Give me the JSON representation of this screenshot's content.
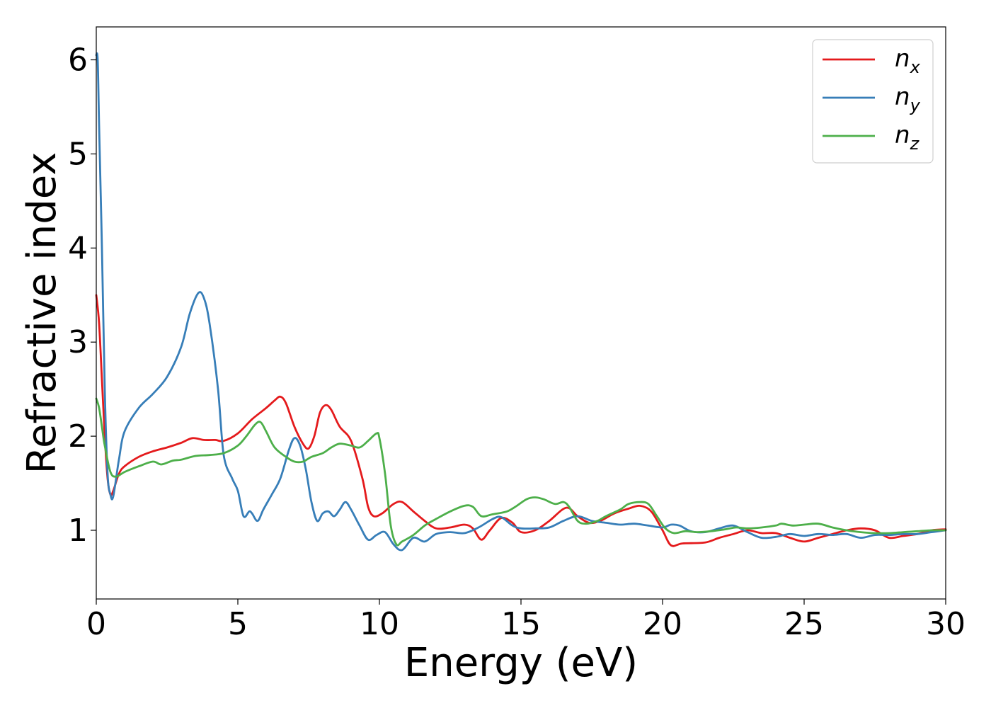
{
  "chart_data": {
    "type": "line",
    "xlabel": "Energy (eV)",
    "ylabel": "Refractive index",
    "xlim": [
      0,
      30
    ],
    "ylim": [
      0.27,
      6.35
    ],
    "x_ticks": [
      0,
      5,
      10,
      15,
      20,
      25,
      30
    ],
    "y_ticks": [
      1,
      2,
      3,
      4,
      5,
      6
    ],
    "grid": false,
    "legend_position": "top-right",
    "series": [
      {
        "name": "n_x",
        "label_base": "n",
        "label_sub": "x",
        "color": "#e41a1c",
        "points": [
          [
            0,
            3.5
          ],
          [
            0.1,
            3.2
          ],
          [
            0.2,
            2.6
          ],
          [
            0.3,
            2.0
          ],
          [
            0.4,
            1.55
          ],
          [
            0.5,
            1.38
          ],
          [
            0.6,
            1.42
          ],
          [
            0.8,
            1.6
          ],
          [
            1.0,
            1.68
          ],
          [
            1.5,
            1.78
          ],
          [
            2.0,
            1.84
          ],
          [
            2.5,
            1.88
          ],
          [
            3.0,
            1.93
          ],
          [
            3.4,
            1.98
          ],
          [
            3.8,
            1.96
          ],
          [
            4.2,
            1.96
          ],
          [
            4.5,
            1.95
          ],
          [
            5.0,
            2.03
          ],
          [
            5.5,
            2.18
          ],
          [
            6.0,
            2.3
          ],
          [
            6.3,
            2.38
          ],
          [
            6.5,
            2.42
          ],
          [
            6.7,
            2.35
          ],
          [
            7.0,
            2.1
          ],
          [
            7.3,
            1.92
          ],
          [
            7.5,
            1.87
          ],
          [
            7.7,
            2.0
          ],
          [
            7.9,
            2.25
          ],
          [
            8.1,
            2.33
          ],
          [
            8.3,
            2.28
          ],
          [
            8.6,
            2.1
          ],
          [
            9.0,
            1.95
          ],
          [
            9.4,
            1.55
          ],
          [
            9.6,
            1.25
          ],
          [
            9.8,
            1.15
          ],
          [
            10.1,
            1.18
          ],
          [
            10.5,
            1.28
          ],
          [
            10.8,
            1.3
          ],
          [
            11.2,
            1.2
          ],
          [
            11.6,
            1.1
          ],
          [
            12.0,
            1.02
          ],
          [
            12.5,
            1.03
          ],
          [
            13.0,
            1.06
          ],
          [
            13.3,
            1.02
          ],
          [
            13.6,
            0.9
          ],
          [
            13.9,
            1.0
          ],
          [
            14.3,
            1.13
          ],
          [
            14.7,
            1.08
          ],
          [
            15.0,
            0.98
          ],
          [
            15.5,
            1.0
          ],
          [
            16.0,
            1.1
          ],
          [
            16.6,
            1.24
          ],
          [
            17.0,
            1.15
          ],
          [
            17.4,
            1.08
          ],
          [
            17.8,
            1.1
          ],
          [
            18.3,
            1.18
          ],
          [
            18.8,
            1.23
          ],
          [
            19.2,
            1.26
          ],
          [
            19.6,
            1.2
          ],
          [
            20.0,
            1.0
          ],
          [
            20.3,
            0.84
          ],
          [
            20.7,
            0.86
          ],
          [
            21.5,
            0.87
          ],
          [
            22.0,
            0.92
          ],
          [
            22.5,
            0.96
          ],
          [
            23.0,
            1.0
          ],
          [
            23.5,
            0.97
          ],
          [
            24.0,
            0.97
          ],
          [
            24.5,
            0.92
          ],
          [
            25.0,
            0.88
          ],
          [
            25.5,
            0.92
          ],
          [
            26.0,
            0.96
          ],
          [
            26.5,
            1.0
          ],
          [
            27.0,
            1.02
          ],
          [
            27.5,
            1.0
          ],
          [
            28.0,
            0.92
          ],
          [
            28.5,
            0.94
          ],
          [
            29.0,
            0.96
          ],
          [
            29.5,
            1.0
          ],
          [
            30.0,
            1.01
          ]
        ]
      },
      {
        "name": "n_y",
        "label_base": "n",
        "label_sub": "y",
        "color": "#377eb8",
        "points": [
          [
            0,
            6.05
          ],
          [
            0.05,
            6.0
          ],
          [
            0.1,
            5.3
          ],
          [
            0.2,
            4.0
          ],
          [
            0.3,
            2.5
          ],
          [
            0.4,
            1.6
          ],
          [
            0.5,
            1.38
          ],
          [
            0.6,
            1.36
          ],
          [
            0.8,
            1.75
          ],
          [
            1.0,
            2.05
          ],
          [
            1.5,
            2.3
          ],
          [
            2.0,
            2.45
          ],
          [
            2.5,
            2.63
          ],
          [
            3.0,
            2.95
          ],
          [
            3.3,
            3.3
          ],
          [
            3.6,
            3.52
          ],
          [
            3.8,
            3.47
          ],
          [
            4.0,
            3.2
          ],
          [
            4.3,
            2.5
          ],
          [
            4.5,
            1.8
          ],
          [
            4.8,
            1.55
          ],
          [
            5.0,
            1.42
          ],
          [
            5.2,
            1.15
          ],
          [
            5.4,
            1.2
          ],
          [
            5.5,
            1.18
          ],
          [
            5.7,
            1.1
          ],
          [
            5.9,
            1.22
          ],
          [
            6.2,
            1.38
          ],
          [
            6.5,
            1.55
          ],
          [
            6.8,
            1.85
          ],
          [
            7.0,
            1.98
          ],
          [
            7.2,
            1.9
          ],
          [
            7.4,
            1.65
          ],
          [
            7.6,
            1.3
          ],
          [
            7.8,
            1.1
          ],
          [
            8.0,
            1.18
          ],
          [
            8.2,
            1.2
          ],
          [
            8.4,
            1.15
          ],
          [
            8.6,
            1.22
          ],
          [
            8.8,
            1.3
          ],
          [
            9.0,
            1.22
          ],
          [
            9.3,
            1.05
          ],
          [
            9.6,
            0.9
          ],
          [
            9.9,
            0.95
          ],
          [
            10.2,
            0.98
          ],
          [
            10.5,
            0.85
          ],
          [
            10.8,
            0.79
          ],
          [
            11.2,
            0.92
          ],
          [
            11.6,
            0.88
          ],
          [
            12.0,
            0.96
          ],
          [
            12.5,
            0.98
          ],
          [
            13.0,
            0.97
          ],
          [
            13.5,
            1.03
          ],
          [
            14.0,
            1.12
          ],
          [
            14.3,
            1.14
          ],
          [
            14.7,
            1.05
          ],
          [
            15.0,
            1.02
          ],
          [
            15.5,
            1.02
          ],
          [
            16.0,
            1.03
          ],
          [
            16.5,
            1.1
          ],
          [
            17.0,
            1.15
          ],
          [
            17.5,
            1.1
          ],
          [
            18.0,
            1.08
          ],
          [
            18.5,
            1.06
          ],
          [
            19.0,
            1.07
          ],
          [
            19.5,
            1.05
          ],
          [
            20.0,
            1.03
          ],
          [
            20.3,
            1.06
          ],
          [
            20.6,
            1.05
          ],
          [
            21.0,
            0.99
          ],
          [
            21.5,
            0.98
          ],
          [
            22.0,
            1.02
          ],
          [
            22.5,
            1.05
          ],
          [
            23.0,
            0.98
          ],
          [
            23.5,
            0.92
          ],
          [
            24.0,
            0.93
          ],
          [
            24.5,
            0.96
          ],
          [
            25.0,
            0.94
          ],
          [
            25.5,
            0.96
          ],
          [
            26.0,
            0.95
          ],
          [
            26.5,
            0.96
          ],
          [
            27.0,
            0.92
          ],
          [
            27.5,
            0.95
          ],
          [
            28.0,
            0.95
          ],
          [
            28.5,
            0.96
          ],
          [
            29.0,
            0.96
          ],
          [
            29.5,
            0.98
          ],
          [
            30.0,
            1.0
          ]
        ]
      },
      {
        "name": "n_z",
        "label_base": "n",
        "label_sub": "z",
        "color": "#4daf4a",
        "points": [
          [
            0,
            2.4
          ],
          [
            0.1,
            2.3
          ],
          [
            0.2,
            2.1
          ],
          [
            0.3,
            1.9
          ],
          [
            0.5,
            1.62
          ],
          [
            0.7,
            1.57
          ],
          [
            1.0,
            1.62
          ],
          [
            1.5,
            1.68
          ],
          [
            2.0,
            1.73
          ],
          [
            2.3,
            1.7
          ],
          [
            2.7,
            1.74
          ],
          [
            3.0,
            1.75
          ],
          [
            3.5,
            1.79
          ],
          [
            4.0,
            1.8
          ],
          [
            4.5,
            1.82
          ],
          [
            5.0,
            1.9
          ],
          [
            5.3,
            2.0
          ],
          [
            5.6,
            2.12
          ],
          [
            5.8,
            2.15
          ],
          [
            6.0,
            2.05
          ],
          [
            6.3,
            1.88
          ],
          [
            6.7,
            1.78
          ],
          [
            7.0,
            1.73
          ],
          [
            7.3,
            1.73
          ],
          [
            7.6,
            1.78
          ],
          [
            8.0,
            1.82
          ],
          [
            8.3,
            1.88
          ],
          [
            8.6,
            1.92
          ],
          [
            9.0,
            1.9
          ],
          [
            9.3,
            1.88
          ],
          [
            9.6,
            1.95
          ],
          [
            9.9,
            2.03
          ],
          [
            10.0,
            1.98
          ],
          [
            10.2,
            1.6
          ],
          [
            10.4,
            1.05
          ],
          [
            10.6,
            0.85
          ],
          [
            10.8,
            0.88
          ],
          [
            11.2,
            0.95
          ],
          [
            11.6,
            1.05
          ],
          [
            12.0,
            1.12
          ],
          [
            12.5,
            1.2
          ],
          [
            13.0,
            1.26
          ],
          [
            13.3,
            1.25
          ],
          [
            13.6,
            1.15
          ],
          [
            14.0,
            1.17
          ],
          [
            14.5,
            1.2
          ],
          [
            14.8,
            1.25
          ],
          [
            15.2,
            1.33
          ],
          [
            15.5,
            1.35
          ],
          [
            15.8,
            1.33
          ],
          [
            16.2,
            1.28
          ],
          [
            16.5,
            1.3
          ],
          [
            16.7,
            1.25
          ],
          [
            17.0,
            1.1
          ],
          [
            17.3,
            1.07
          ],
          [
            17.7,
            1.1
          ],
          [
            18.0,
            1.15
          ],
          [
            18.5,
            1.22
          ],
          [
            18.8,
            1.28
          ],
          [
            19.2,
            1.3
          ],
          [
            19.5,
            1.28
          ],
          [
            19.8,
            1.15
          ],
          [
            20.1,
            1.02
          ],
          [
            20.4,
            0.97
          ],
          [
            20.8,
            0.99
          ],
          [
            21.2,
            0.98
          ],
          [
            21.7,
            0.99
          ],
          [
            22.2,
            1.01
          ],
          [
            22.6,
            1.03
          ],
          [
            23.0,
            1.02
          ],
          [
            23.5,
            1.03
          ],
          [
            24.0,
            1.05
          ],
          [
            24.2,
            1.07
          ],
          [
            24.6,
            1.05
          ],
          [
            25.0,
            1.06
          ],
          [
            25.5,
            1.07
          ],
          [
            26.0,
            1.03
          ],
          [
            26.5,
            1.0
          ],
          [
            27.0,
            0.98
          ],
          [
            27.5,
            0.97
          ],
          [
            28.0,
            0.97
          ],
          [
            28.5,
            0.98
          ],
          [
            29.0,
            0.99
          ],
          [
            29.5,
            1.0
          ],
          [
            30.0,
            1.0
          ]
        ]
      }
    ]
  }
}
